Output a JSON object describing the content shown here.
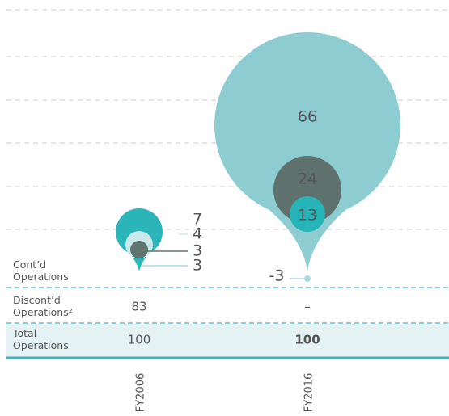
{
  "chart_data": {
    "type": "bubble",
    "categories": [
      "FY2006",
      "FY2016"
    ],
    "series": [
      {
        "colors": [
          "#2bb5b8",
          "#8dcdd1"
        ],
        "values": [
          7,
          66
        ]
      },
      {
        "colors": [
          "#cbe9eb",
          "#5f716c"
        ],
        "values": [
          4,
          24
        ]
      },
      {
        "colors": [
          "#607570",
          "#27b4b8"
        ],
        "values": [
          3,
          13
        ]
      },
      {
        "colors": [
          "#a9dbdd",
          "#a9dbdd"
        ],
        "values": [
          3,
          -3
        ]
      }
    ],
    "grid": true,
    "table": {
      "rows": [
        {
          "label": "Cont’d Operations",
          "cells": []
        },
        {
          "label": "Discont’d Operations²",
          "cells": [
            "83",
            "–"
          ]
        },
        {
          "label": "Total Operations",
          "cells": [
            "100",
            "100"
          ]
        }
      ]
    }
  }
}
